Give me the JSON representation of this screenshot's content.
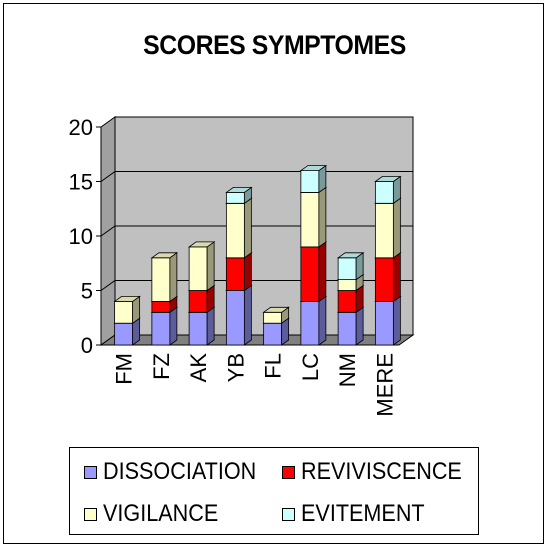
{
  "chart_data": {
    "type": "bar",
    "stacked": true,
    "three_d": true,
    "title": "SCORES SYMPTOMES",
    "categories": [
      "FM",
      "FZ",
      "AK",
      "YB",
      "FL",
      "LC",
      "NM",
      "MERE"
    ],
    "series": [
      {
        "name": "DISSOCIATION",
        "color": "#9999ff",
        "values": [
          2,
          3,
          3,
          5,
          2,
          4,
          3,
          4
        ]
      },
      {
        "name": "REVIVISCENCE",
        "color": "#ff0000",
        "values": [
          0,
          1,
          2,
          3,
          0,
          5,
          2,
          4
        ]
      },
      {
        "name": "VIGILANCE",
        "color": "#ffffcc",
        "values": [
          2,
          4,
          4,
          5,
          1,
          5,
          1,
          5
        ]
      },
      {
        "name": "EVITEMENT",
        "color": "#ccffff",
        "values": [
          0,
          0,
          0,
          1,
          0,
          2,
          2,
          2
        ]
      }
    ],
    "y_ticks": [
      "0",
      "5",
      "10",
      "15",
      "20"
    ],
    "ylim": [
      0,
      20
    ],
    "grid": true,
    "legend_position": "bottom"
  }
}
